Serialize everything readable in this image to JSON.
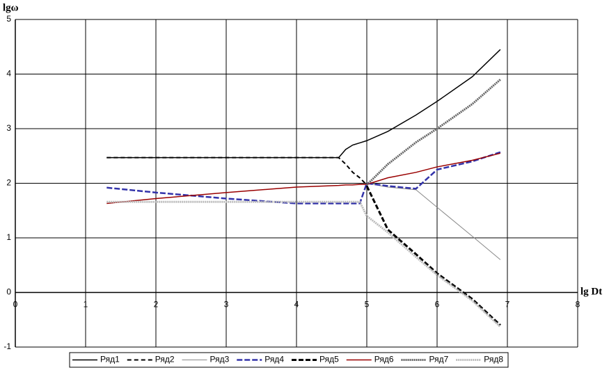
{
  "chart_data": {
    "type": "line",
    "y_label": "lgω",
    "x_label": "lg Dt",
    "x": [
      1.3,
      2,
      3,
      4,
      4.6,
      4.7,
      4.8,
      4.9,
      5.0,
      5.3,
      5.7,
      6.0,
      6.5,
      6.9
    ],
    "series": [
      {
        "name": "Ряд1",
        "color": "#000000",
        "dash": "none",
        "width": 1.5,
        "values": [
          2.47,
          2.47,
          2.47,
          2.47,
          2.47,
          2.62,
          2.7,
          2.74,
          2.78,
          2.95,
          3.25,
          3.5,
          3.95,
          4.45
        ]
      },
      {
        "name": "Ряд2",
        "color": "#000000",
        "dash": "6,4",
        "width": 2,
        "values": [
          2.47,
          2.47,
          2.47,
          2.47,
          2.47,
          2.35,
          2.2,
          2.1,
          1.97,
          null,
          null,
          null,
          null,
          null
        ]
      },
      {
        "name": "Ряд3",
        "color": "#888888",
        "dash": "none",
        "width": 1,
        "values": [
          null,
          null,
          null,
          null,
          null,
          null,
          null,
          null,
          2.0,
          1.93,
          1.88,
          1.56,
          1.03,
          0.6
        ]
      },
      {
        "name": "Ряд4",
        "color": "#3333aa",
        "dash": "8,3",
        "width": 2.5,
        "values": [
          1.92,
          1.83,
          1.72,
          1.63,
          1.63,
          1.63,
          1.63,
          1.63,
          2.0,
          1.95,
          1.9,
          2.25,
          2.4,
          2.57
        ]
      },
      {
        "name": "Ряд5",
        "color": "#000000",
        "dash": "7,3",
        "width": 3,
        "values": [
          null,
          null,
          null,
          null,
          null,
          null,
          null,
          null,
          1.95,
          1.15,
          0.7,
          0.35,
          -0.12,
          -0.6
        ]
      },
      {
        "name": "Ряд6",
        "color": "#990000",
        "dash": "none",
        "width": 1.5,
        "values": [
          1.63,
          1.72,
          1.83,
          1.93,
          1.96,
          1.97,
          1.97,
          1.98,
          1.98,
          2.1,
          2.2,
          2.3,
          2.42,
          2.55
        ]
      },
      {
        "name": "Ряд7",
        "color": "#666666",
        "dash": "2,1",
        "width": 3,
        "values": [
          null,
          null,
          null,
          null,
          null,
          null,
          null,
          null,
          1.97,
          2.35,
          2.75,
          3.0,
          3.45,
          3.9
        ]
      },
      {
        "name": "Ряд8",
        "color": "#bbbbbb",
        "dash": "2,1",
        "width": 3,
        "values": [
          1.66,
          1.66,
          1.66,
          1.66,
          1.66,
          1.66,
          1.66,
          1.66,
          1.4,
          1.1,
          0.65,
          0.32,
          -0.15,
          -0.63
        ]
      }
    ],
    "xlim": [
      0,
      8
    ],
    "xticks": [
      0,
      1,
      2,
      3,
      4,
      5,
      6,
      7,
      8
    ],
    "ylim": [
      -1,
      5
    ],
    "yticks": [
      -1,
      0,
      1,
      2,
      3,
      4,
      5
    ],
    "grid": true,
    "legend": "bottom"
  }
}
